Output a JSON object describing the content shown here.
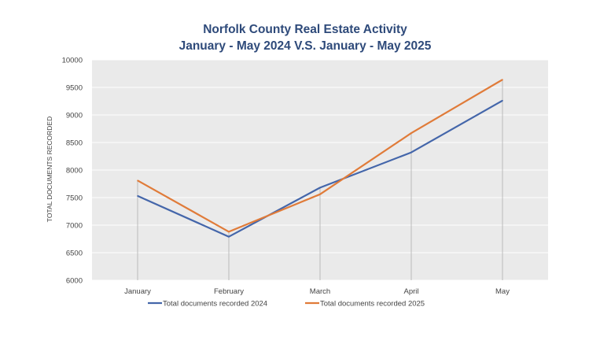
{
  "chart_data": {
    "type": "line",
    "title": "Norfolk County Real Estate Activity",
    "subtitle": "January - May 2024 V.S. January - May 2025",
    "xlabel": "",
    "ylabel": "TOTAL DOCUMENTS RECORDED",
    "categories": [
      "January",
      "February",
      "March",
      "April",
      "May"
    ],
    "ylim": [
      6000,
      10000
    ],
    "yticks": [
      "6000",
      "6500",
      "7000",
      "7500",
      "8000",
      "8500",
      "9000",
      "9500",
      "10000"
    ],
    "grid": true,
    "legend_position": "bottom",
    "series": [
      {
        "name": "Total documents recorded 2024",
        "values": [
          7530,
          6790,
          7680,
          8320,
          9260
        ],
        "color": "#4466aa"
      },
      {
        "name": "Total documents recorded 2025",
        "values": [
          7810,
          6880,
          7560,
          8670,
          9640
        ],
        "color": "#e07b39"
      }
    ],
    "title_color": "#2e4a7a",
    "plot_background": "#eaeaea",
    "grid_color": "#ffffff",
    "drop_line_color": "#bbbbbb"
  }
}
